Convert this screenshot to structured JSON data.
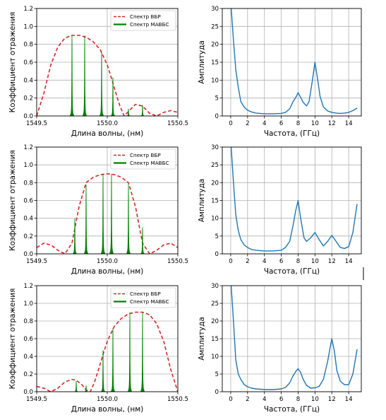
{
  "chart_data": [
    {
      "type": "line",
      "ylabel": "Коэффициент отражения",
      "xlabel": "Длина волны, (нм)",
      "xlim": [
        1549.5,
        1550.5
      ],
      "ylim": [
        0,
        1.2
      ],
      "xticks": [
        "1549.5",
        "1550.0",
        "1550.5"
      ],
      "yticks": [
        "0.0",
        "0.2",
        "0.4",
        "0.6",
        "0.8",
        "1.0",
        "1.2"
      ],
      "grid": true,
      "legend_position": "top-right",
      "series": [
        {
          "name": "Спектр ВБР",
          "color": "#d62728",
          "style": "dashed",
          "center": 1549.81,
          "peak": 0.9,
          "x": [
            1549.5,
            1549.55,
            1549.6,
            1549.65,
            1549.7,
            1549.75,
            1549.8,
            1549.85,
            1549.9,
            1549.95,
            1550.0,
            1550.03,
            1550.06,
            1550.09,
            1550.12,
            1550.15,
            1550.2,
            1550.25,
            1550.3,
            1550.35,
            1550.4,
            1550.45,
            1550.5
          ],
          "y": [
            0.0,
            0.25,
            0.57,
            0.77,
            0.87,
            0.9,
            0.9,
            0.88,
            0.83,
            0.74,
            0.57,
            0.42,
            0.26,
            0.11,
            0.0,
            0.05,
            0.13,
            0.11,
            0.03,
            0.0,
            0.04,
            0.06,
            0.04
          ]
        },
        {
          "name": "Спектр МАВБС",
          "color": "#008000",
          "style": "stems",
          "x": [
            1549.75,
            1549.84,
            1549.96,
            1550.04,
            1550.15,
            1550.25
          ],
          "y": [
            0.9,
            0.9,
            0.72,
            0.43,
            0.08,
            0.12
          ]
        }
      ]
    },
    {
      "type": "line",
      "ylabel": "Амплитуда",
      "xlabel": "Частота, (ГГц)",
      "xlim": [
        -1,
        15.5
      ],
      "ylim": [
        0,
        30
      ],
      "xticks": [
        "0",
        "2",
        "4",
        "6",
        "8",
        "10",
        "12",
        "14"
      ],
      "yticks": [
        "0",
        "5",
        "10",
        "15",
        "20",
        "25",
        "30"
      ],
      "grid": true,
      "series": [
        {
          "color": "#1f77b4",
          "x": [
            0.0,
            0.3,
            0.6,
            0.9,
            1.2,
            1.6,
            2.0,
            2.5,
            3.0,
            4.0,
            5.0,
            6.0,
            6.5,
            7.0,
            7.4,
            7.8,
            8.0,
            8.3,
            8.6,
            9.0,
            9.3,
            9.7,
            10.0,
            10.3,
            10.6,
            11.0,
            11.5,
            12.0,
            12.5,
            13.0,
            13.5,
            14.0,
            14.5,
            15.0
          ],
          "y": [
            32,
            22,
            13,
            8,
            4,
            2.5,
            1.6,
            1.1,
            0.8,
            0.6,
            0.6,
            0.7,
            1.0,
            2.0,
            4.0,
            5.5,
            6.5,
            5.2,
            3.8,
            2.8,
            4.0,
            10.0,
            15.0,
            10.5,
            5.5,
            2.5,
            1.4,
            1.0,
            0.8,
            0.7,
            0.8,
            1.0,
            1.5,
            2.2
          ]
        }
      ]
    },
    {
      "type": "line",
      "ylabel": "Коэффициент отражения",
      "xlabel": "Длина волны, (нм)",
      "xlim": [
        1549.5,
        1550.5
      ],
      "ylim": [
        0,
        1.2
      ],
      "xticks": [
        "1549.5",
        "1550.0",
        "1550.5"
      ],
      "yticks": [
        "0.0",
        "0.2",
        "0.4",
        "0.6",
        "0.8",
        "1.0",
        "1.2"
      ],
      "grid": true,
      "legend_position": "top-right",
      "series": [
        {
          "name": "Спектр ВБР",
          "color": "#d62728",
          "style": "dashed",
          "x": [
            1549.5,
            1549.55,
            1549.6,
            1549.65,
            1549.7,
            1549.75,
            1549.8,
            1549.85,
            1549.9,
            1549.95,
            1550.0,
            1550.05,
            1550.1,
            1550.15,
            1550.2,
            1550.25,
            1550.3,
            1550.35,
            1550.4,
            1550.45,
            1550.5
          ],
          "y": [
            0.07,
            0.12,
            0.1,
            0.04,
            0.0,
            0.12,
            0.53,
            0.8,
            0.86,
            0.89,
            0.9,
            0.89,
            0.86,
            0.8,
            0.53,
            0.12,
            0.0,
            0.04,
            0.1,
            0.12,
            0.07
          ]
        },
        {
          "name": "Спектр МАВБС",
          "color": "#008000",
          "style": "stems",
          "x": [
            1549.77,
            1549.85,
            1549.97,
            1550.03,
            1550.15,
            1550.25
          ],
          "y": [
            0.4,
            0.78,
            0.9,
            0.9,
            0.78,
            0.3
          ]
        }
      ]
    },
    {
      "type": "line",
      "ylabel": "Амплитуда",
      "xlabel": "Частота, (ГГц)",
      "xlim": [
        -1,
        15.5
      ],
      "ylim": [
        0,
        30
      ],
      "xticks": [
        "0",
        "2",
        "4",
        "6",
        "8",
        "10",
        "12",
        "14"
      ],
      "yticks": [
        "0",
        "5",
        "10",
        "15",
        "20",
        "25",
        "30"
      ],
      "grid": true,
      "series": [
        {
          "color": "#1f77b4",
          "x": [
            0.0,
            0.3,
            0.6,
            0.9,
            1.2,
            1.6,
            2.0,
            2.5,
            3.0,
            4.0,
            5.0,
            6.0,
            6.5,
            7.0,
            7.4,
            7.7,
            8.0,
            8.3,
            8.7,
            9.0,
            9.5,
            10.0,
            10.5,
            11.0,
            11.5,
            12.0,
            12.5,
            13.0,
            13.5,
            14.0,
            14.5,
            15.0
          ],
          "y": [
            32,
            21,
            11,
            6.5,
            4,
            2.5,
            1.8,
            1.2,
            1.0,
            0.8,
            0.8,
            1.0,
            1.8,
            3.5,
            8.0,
            12.0,
            15.0,
            10.0,
            4.5,
            3.5,
            4.5,
            6.0,
            4.0,
            2.2,
            3.5,
            5.2,
            3.5,
            1.8,
            1.5,
            2.0,
            6.0,
            14.0
          ]
        }
      ]
    },
    {
      "type": "line",
      "ylabel": "Коэффициент отражения",
      "xlabel": "Длина волны, (нм)",
      "xlim": [
        1549.5,
        1550.5
      ],
      "ylim": [
        0,
        1.2
      ],
      "xticks": [
        "1549.5",
        "1550.0",
        "1550.5"
      ],
      "yticks": [
        "0.0",
        "0.2",
        "0.4",
        "0.6",
        "0.8",
        "1.0",
        "1.2"
      ],
      "grid": true,
      "legend_position": "top-right",
      "series": [
        {
          "name": "Спектр ВБР",
          "color": "#d62728",
          "style": "dashed",
          "x": [
            1549.5,
            1549.55,
            1549.6,
            1549.65,
            1549.7,
            1549.75,
            1549.78,
            1549.82,
            1549.85,
            1549.88,
            1549.91,
            1549.94,
            1549.97,
            1550.0,
            1550.05,
            1550.1,
            1550.15,
            1550.2,
            1550.25,
            1550.3,
            1550.35,
            1550.4,
            1550.45,
            1550.5
          ],
          "y": [
            0.06,
            0.04,
            0.0,
            0.04,
            0.11,
            0.14,
            0.13,
            0.08,
            0.02,
            0.0,
            0.11,
            0.26,
            0.42,
            0.57,
            0.74,
            0.83,
            0.88,
            0.9,
            0.9,
            0.87,
            0.77,
            0.57,
            0.25,
            0.0
          ]
        },
        {
          "name": "Спектр МАВБС",
          "color": "#008000",
          "style": "stems",
          "x": [
            1549.78,
            1549.85,
            1549.97,
            1550.04,
            1550.16,
            1550.25
          ],
          "y": [
            0.12,
            0.07,
            0.47,
            0.72,
            0.9,
            0.9
          ]
        }
      ]
    },
    {
      "type": "line",
      "ylabel": "Амплитуда",
      "xlabel": "Частота, (ГГц)",
      "xlim": [
        -1,
        15.5
      ],
      "ylim": [
        0,
        30
      ],
      "xticks": [
        "0",
        "2",
        "4",
        "6",
        "8",
        "10",
        "12",
        "14"
      ],
      "yticks": [
        "0",
        "5",
        "10",
        "15",
        "20",
        "25",
        "30"
      ],
      "grid": true,
      "series": [
        {
          "color": "#1f77b4",
          "x": [
            0.0,
            0.3,
            0.6,
            0.9,
            1.2,
            1.6,
            2.0,
            2.5,
            3.0,
            4.0,
            5.0,
            6.0,
            6.5,
            7.0,
            7.4,
            7.8,
            8.0,
            8.3,
            8.6,
            9.0,
            9.5,
            10.0,
            10.5,
            11.0,
            11.5,
            11.8,
            12.0,
            12.3,
            12.6,
            13.0,
            13.5,
            14.0,
            14.5,
            15.0
          ],
          "y": [
            32,
            21,
            9,
            5,
            3.5,
            2,
            1.4,
            1.0,
            0.8,
            0.6,
            0.6,
            0.8,
            1.2,
            2.5,
            4.5,
            6.0,
            6.5,
            5.5,
            3.5,
            1.8,
            1.0,
            1.1,
            1.5,
            3.5,
            8.5,
            12.5,
            15.0,
            11.5,
            6.0,
            3.0,
            2.0,
            2.0,
            5.0,
            12.0
          ]
        }
      ]
    }
  ]
}
